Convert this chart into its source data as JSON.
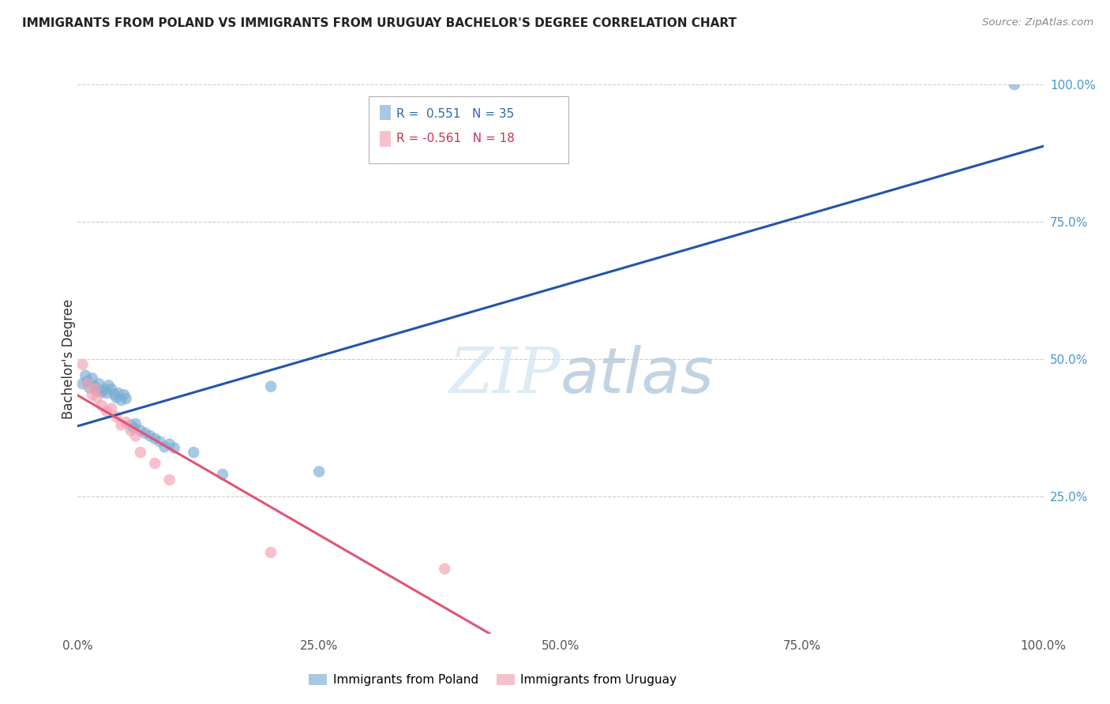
{
  "title": "IMMIGRANTS FROM POLAND VS IMMIGRANTS FROM URUGUAY BACHELOR'S DEGREE CORRELATION CHART",
  "source": "Source: ZipAtlas.com",
  "ylabel": "Bachelor's Degree",
  "xlim": [
    0.0,
    1.0
  ],
  "ylim": [
    0.0,
    1.0
  ],
  "xtick_labels": [
    "0.0%",
    "25.0%",
    "50.0%",
    "75.0%",
    "100.0%"
  ],
  "xtick_vals": [
    0.0,
    0.25,
    0.5,
    0.75,
    1.0
  ],
  "ytick_labels_right": [
    "25.0%",
    "50.0%",
    "75.0%",
    "100.0%"
  ],
  "ytick_vals": [
    0.25,
    0.5,
    0.75,
    1.0
  ],
  "poland_R": 0.551,
  "poland_N": 35,
  "uruguay_R": -0.561,
  "uruguay_N": 18,
  "poland_color": "#7aadd4",
  "uruguay_color": "#f4a0b0",
  "poland_line_color": "#2255AA",
  "uruguay_line_color": "#e05575",
  "poland_x": [
    0.005,
    0.008,
    0.01,
    0.012,
    0.015,
    0.018,
    0.02,
    0.022,
    0.025,
    0.028,
    0.03,
    0.032,
    0.035,
    0.038,
    0.04,
    0.042,
    0.045,
    0.048,
    0.05,
    0.055,
    0.058,
    0.06,
    0.065,
    0.07,
    0.075,
    0.08,
    0.085,
    0.09,
    0.095,
    0.1,
    0.12,
    0.15,
    0.2,
    0.25,
    0.97
  ],
  "poland_y": [
    0.455,
    0.47,
    0.46,
    0.448,
    0.465,
    0.45,
    0.442,
    0.455,
    0.44,
    0.445,
    0.438,
    0.452,
    0.445,
    0.435,
    0.43,
    0.438,
    0.425,
    0.435,
    0.428,
    0.38,
    0.375,
    0.382,
    0.37,
    0.365,
    0.36,
    0.355,
    0.35,
    0.34,
    0.345,
    0.338,
    0.33,
    0.29,
    0.45,
    0.295,
    1.0
  ],
  "uruguay_x": [
    0.005,
    0.01,
    0.015,
    0.018,
    0.02,
    0.025,
    0.03,
    0.035,
    0.04,
    0.045,
    0.05,
    0.055,
    0.06,
    0.065,
    0.08,
    0.095,
    0.2,
    0.38
  ],
  "uruguay_y": [
    0.49,
    0.455,
    0.435,
    0.445,
    0.43,
    0.415,
    0.405,
    0.41,
    0.395,
    0.38,
    0.385,
    0.37,
    0.36,
    0.33,
    0.31,
    0.28,
    0.148,
    0.118
  ]
}
